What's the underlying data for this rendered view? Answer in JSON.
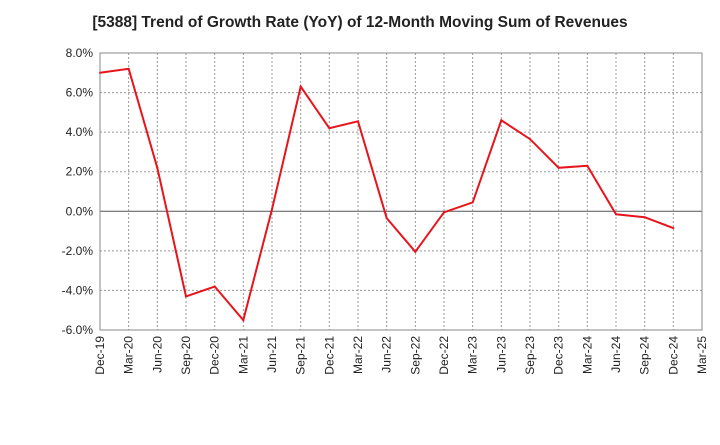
{
  "chart_data": {
    "type": "line",
    "title": "[5388]  Trend of Growth Rate (YoY) of 12-Month Moving Sum of Revenues",
    "xlabel": "",
    "ylabel": "",
    "x": [
      "Dec-19",
      "Mar-20",
      "Jun-20",
      "Sep-20",
      "Dec-20",
      "Mar-21",
      "Jun-21",
      "Sep-21",
      "Dec-21",
      "Mar-22",
      "Jun-22",
      "Sep-22",
      "Dec-22",
      "Mar-23",
      "Jun-23",
      "Sep-23",
      "Dec-23",
      "Mar-24",
      "Jun-24",
      "Sep-24",
      "Dec-24",
      "Mar-25"
    ],
    "y_tick_labels": [
      "8.0%",
      "6.0%",
      "4.0%",
      "2.0%",
      "0.0%",
      "-2.0%",
      "-4.0%",
      "-6.0%"
    ],
    "ylim": [
      -6,
      8
    ],
    "y_unit": "%",
    "grid": true,
    "zero_line": true,
    "series": [
      {
        "color": "#e8141c",
        "values": [
          7.0,
          7.2,
          2.2,
          -4.3,
          -3.8,
          -5.5,
          0.1,
          6.3,
          4.2,
          4.55,
          -0.35,
          -2.05,
          -0.05,
          0.45,
          4.6,
          3.65,
          2.2,
          2.3,
          -0.15,
          -0.3,
          -0.85,
          null
        ]
      }
    ]
  }
}
